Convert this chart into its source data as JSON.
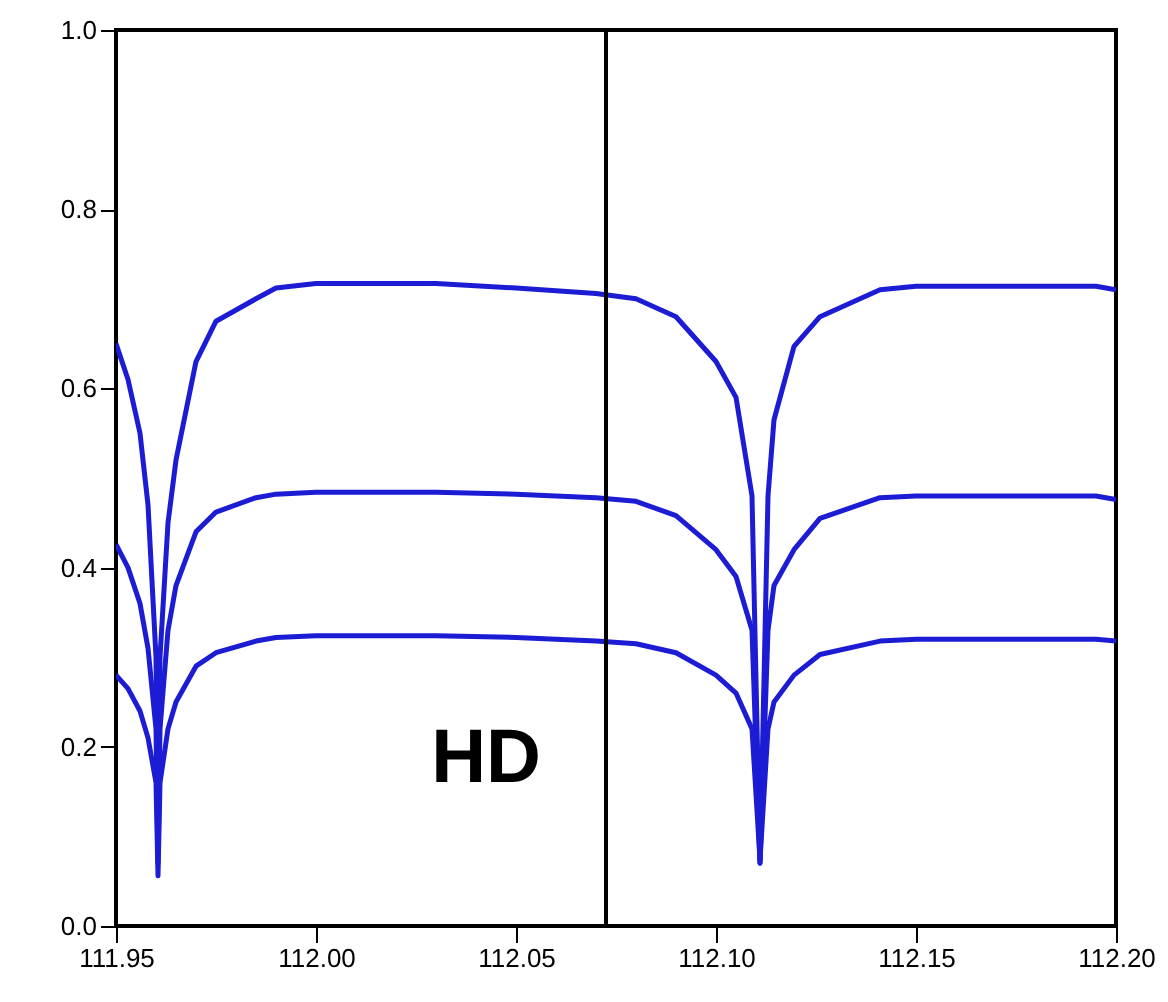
{
  "chart_data": {
    "type": "line",
    "xlim": [
      111.95,
      112.2
    ],
    "xticks": [
      {
        "value": 111.95,
        "label": "111.95"
      },
      {
        "value": 112.0,
        "label": "112.00"
      },
      {
        "value": 112.05,
        "label": "112.05"
      },
      {
        "value": 112.1,
        "label": "112.10"
      },
      {
        "value": 112.15,
        "label": "112.15"
      },
      {
        "value": 112.2,
        "label": "112.20"
      }
    ],
    "ylim": [
      0,
      1
    ],
    "yticks": [
      {
        "value": 0,
        "label": "0.0"
      },
      {
        "value": 0.2,
        "label": "0.2"
      },
      {
        "value": 0.4,
        "label": "0.4"
      },
      {
        "value": 0.6,
        "label": "0.6"
      },
      {
        "value": 0.8,
        "label": "0.8"
      },
      {
        "value": 1,
        "label": "1.0"
      }
    ],
    "grid": false,
    "line_style": "solid",
    "marker": "none",
    "annotations": [
      "HD"
    ],
    "ref_lines": [
      {
        "axis": "x",
        "value": 112.0725,
        "color": "#000000"
      }
    ],
    "x": [
      111.95,
      111.953,
      111.956,
      111.958,
      111.96,
      111.9605,
      111.961,
      111.963,
      111.965,
      111.97,
      111.975,
      111.985,
      111.99,
      112.0,
      112.03,
      112.05,
      112.07,
      112.08,
      112.09,
      112.1,
      112.105,
      112.109,
      112.111,
      112.113,
      112.1145,
      112.1195,
      112.126,
      112.141,
      112.15,
      112.195,
      112.2
    ],
    "series": [
      {
        "color": "#1c1cd4",
        "values": [
          0.65,
          0.61,
          0.55,
          0.47,
          0.3,
          0.08,
          0.3,
          0.45,
          0.52,
          0.63,
          0.675,
          0.7,
          0.712,
          0.717,
          0.717,
          0.712,
          0.706,
          0.7,
          0.68,
          0.63,
          0.59,
          0.48,
          0.07,
          0.48,
          0.565,
          0.647,
          0.68,
          0.71,
          0.714,
          0.714,
          0.71
        ]
      },
      {
        "color": "#1c1cd4",
        "values": [
          0.426,
          0.4,
          0.36,
          0.31,
          0.22,
          0.07,
          0.22,
          0.33,
          0.38,
          0.44,
          0.462,
          0.478,
          0.482,
          0.484,
          0.484,
          0.482,
          0.478,
          0.474,
          0.458,
          0.42,
          0.39,
          0.33,
          0.07,
          0.33,
          0.38,
          0.42,
          0.455,
          0.478,
          0.48,
          0.48,
          0.476
        ]
      },
      {
        "color": "#1c1cd4",
        "values": [
          0.28,
          0.265,
          0.24,
          0.21,
          0.16,
          0.056,
          0.16,
          0.22,
          0.25,
          0.29,
          0.305,
          0.318,
          0.322,
          0.324,
          0.324,
          0.322,
          0.318,
          0.315,
          0.305,
          0.28,
          0.26,
          0.22,
          0.074,
          0.22,
          0.25,
          0.28,
          0.303,
          0.318,
          0.32,
          0.32,
          0.318
        ]
      }
    ]
  }
}
